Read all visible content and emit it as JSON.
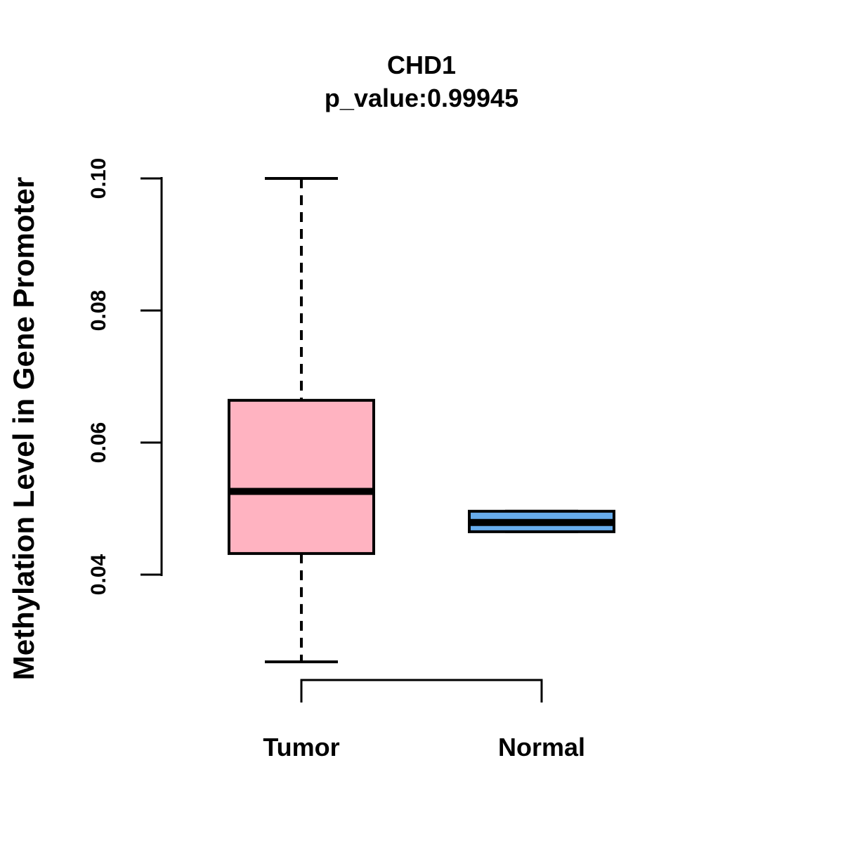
{
  "chart_data": {
    "type": "boxplot",
    "title": "CHD1",
    "subtitle": "p_value:0.99945",
    "ylabel": "Methylation Level in Gene Promoter",
    "xlabel": "",
    "ylim": [
      0.04,
      0.1
    ],
    "yticks": [
      0.04,
      0.06,
      0.08,
      0.1
    ],
    "ytick_labels": [
      "0.04",
      "0.06",
      "0.08",
      "0.10"
    ],
    "categories": [
      "Tumor",
      "Normal"
    ],
    "groups": [
      {
        "label": "Tumor",
        "fill_color": "#FFB3C1",
        "whisker_low": 0.0268,
        "q1": 0.0432,
        "median": 0.0526,
        "q3": 0.0664,
        "whisker_high": 0.1,
        "whisker_style": "dashed"
      },
      {
        "label": "Normal",
        "fill_color": "#67ACEC",
        "whisker_low": 0.0465,
        "q1": 0.0465,
        "median": 0.0479,
        "q3": 0.0496,
        "whisker_high": 0.0496,
        "whisker_style": "dashed"
      }
    ],
    "line_color": "#000000",
    "background_color": "#FFFFFF",
    "grid": false,
    "legend": false
  }
}
